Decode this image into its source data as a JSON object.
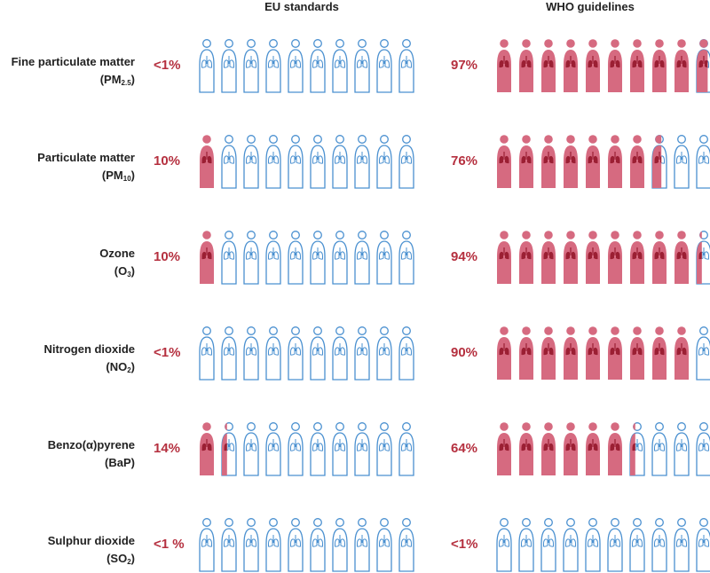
{
  "chart_data": {
    "type": "pictogram",
    "title": "",
    "columns": [
      "EU standards",
      "WHO guidelines"
    ],
    "icons_per_row": 10,
    "rows": [
      {
        "label": "Fine particulate matter",
        "formula_base": "PM",
        "formula_sub": "2.5",
        "eu": {
          "value": 1,
          "label": "<1%"
        },
        "who": {
          "value": 97,
          "label": "97%"
        }
      },
      {
        "label": "Particulate matter",
        "formula_base": "PM",
        "formula_sub": "10",
        "eu": {
          "value": 10,
          "label": "10%"
        },
        "who": {
          "value": 76,
          "label": "76%"
        }
      },
      {
        "label": "Ozone",
        "formula_base": "O",
        "formula_sub": "3",
        "eu": {
          "value": 10,
          "label": "10%"
        },
        "who": {
          "value": 94,
          "label": "94%"
        }
      },
      {
        "label": "Nitrogen dioxide",
        "formula_base": "NO",
        "formula_sub": "2",
        "eu": {
          "value": 1,
          "label": "<1%"
        },
        "who": {
          "value": 90,
          "label": "90%"
        }
      },
      {
        "label": "Benzo(α)pyrene",
        "formula_base": "BaP",
        "formula_sub": "",
        "eu": {
          "value": 14,
          "label": "14%"
        },
        "who": {
          "value": 64,
          "label": "64%"
        }
      },
      {
        "label": "Sulphur dioxide",
        "formula_base": "SO",
        "formula_sub": "2",
        "eu": {
          "value": 1,
          "label": "<1 %"
        },
        "who": {
          "value": 1,
          "label": "<1%"
        }
      }
    ]
  },
  "colors": {
    "exposed_fill": "#d66a80",
    "lung": "#9b1f33",
    "outline": "#4a90d0",
    "percent_text": "#b5303f"
  }
}
